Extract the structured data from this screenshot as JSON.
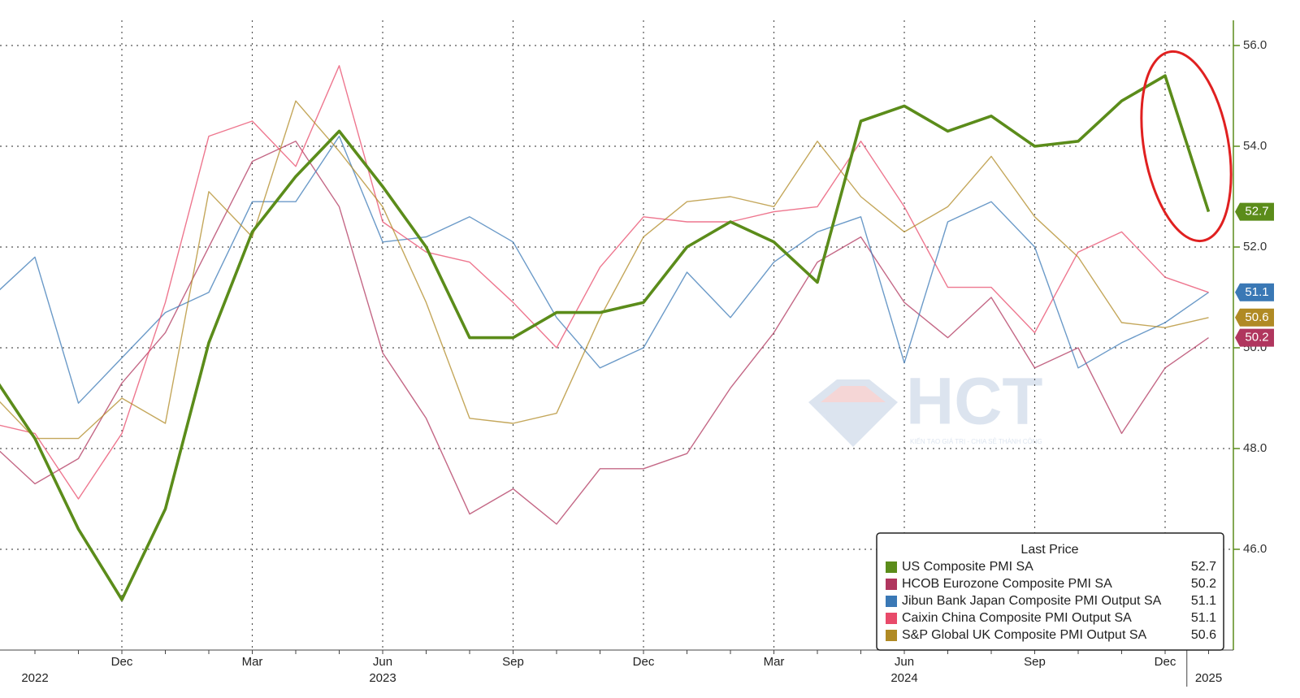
{
  "chart_data": {
    "type": "line",
    "categories": [
      null,
      null,
      null,
      "Dec",
      null,
      null,
      "Mar",
      null,
      null,
      "Jun",
      null,
      null,
      "Sep",
      null,
      null,
      "Dec",
      null,
      null,
      "Mar",
      null,
      null,
      "Jun",
      null,
      null,
      "Sep",
      null,
      null,
      "Dec",
      null
    ],
    "years": [
      null,
      "2022",
      null,
      null,
      null,
      null,
      null,
      null,
      null,
      "2023",
      null,
      null,
      null,
      null,
      null,
      null,
      null,
      null,
      null,
      null,
      null,
      "2024",
      null,
      null,
      null,
      null,
      null,
      null,
      "2025"
    ],
    "series": [
      {
        "name": "US Composite PMI SA",
        "color": "#5b8c1a",
        "values": [
          49.5,
          48.2,
          46.4,
          45.0,
          46.8,
          50.1,
          52.3,
          53.4,
          54.3,
          53.2,
          52.0,
          50.2,
          50.2,
          50.7,
          50.7,
          50.9,
          52.0,
          52.5,
          52.1,
          51.3,
          54.5,
          54.8,
          54.3,
          54.6,
          54.0,
          54.1,
          54.9,
          55.4,
          52.7
        ]
      },
      {
        "name": "HCOB Eurozone Composite PMI SA",
        "color": "#b0365e",
        "values": [
          48.1,
          47.3,
          47.8,
          49.3,
          50.3,
          52.0,
          53.7,
          54.1,
          52.8,
          49.9,
          48.6,
          46.7,
          47.2,
          46.5,
          47.6,
          47.6,
          47.9,
          49.2,
          50.3,
          51.7,
          52.2,
          50.9,
          50.2,
          51.0,
          49.6,
          50.0,
          48.3,
          49.6,
          50.2
        ]
      },
      {
        "name": "Jibun Bank Japan Composite PMI Output SA",
        "color": "#3a78b5",
        "values": [
          51.0,
          51.8,
          48.9,
          49.8,
          50.7,
          51.1,
          52.9,
          52.9,
          54.2,
          52.1,
          52.2,
          52.6,
          52.1,
          50.6,
          49.6,
          50.0,
          51.5,
          50.6,
          51.7,
          52.3,
          52.6,
          49.7,
          52.5,
          52.9,
          52.0,
          49.6,
          50.1,
          50.5,
          51.1
        ]
      },
      {
        "name": "Caixin China Composite PMI Output SA",
        "color": "#e84a6a",
        "values": [
          48.5,
          48.3,
          47.0,
          48.3,
          50.9,
          54.2,
          54.5,
          53.6,
          55.6,
          52.5,
          51.9,
          51.7,
          50.9,
          50.0,
          51.6,
          52.6,
          52.5,
          52.5,
          52.7,
          52.8,
          54.1,
          52.8,
          51.2,
          51.2,
          50.3,
          51.9,
          52.3,
          51.4,
          51.1
        ]
      },
      {
        "name": "S&P Global UK Composite PMI Output SA",
        "color": "#b08a24",
        "values": [
          49.1,
          48.2,
          48.2,
          49.0,
          48.5,
          53.1,
          52.2,
          54.9,
          53.9,
          52.8,
          50.9,
          48.6,
          48.5,
          48.7,
          50.6,
          52.2,
          52.9,
          53.0,
          52.8,
          54.1,
          53.0,
          52.3,
          52.8,
          53.8,
          52.6,
          51.8,
          50.5,
          50.4,
          50.6
        ]
      }
    ],
    "legend_title": "Last Price",
    "ylim": [
      44,
      56.5
    ],
    "yticks": [
      {
        "value": 46,
        "label": "46.0"
      },
      {
        "value": 48,
        "label": "48.0"
      },
      {
        "value": 50,
        "label": "50.0"
      },
      {
        "value": 52,
        "label": "52.0"
      },
      {
        "value": 54,
        "label": "54.0"
      },
      {
        "value": 56,
        "label": "56.0"
      }
    ],
    "grid": true,
    "legend": "lower right"
  },
  "watermark": {
    "text": "HCT",
    "tagline": "KIẾN TẠO GIÁ TRỊ - CHIA SẺ THÀNH CÔNG"
  }
}
